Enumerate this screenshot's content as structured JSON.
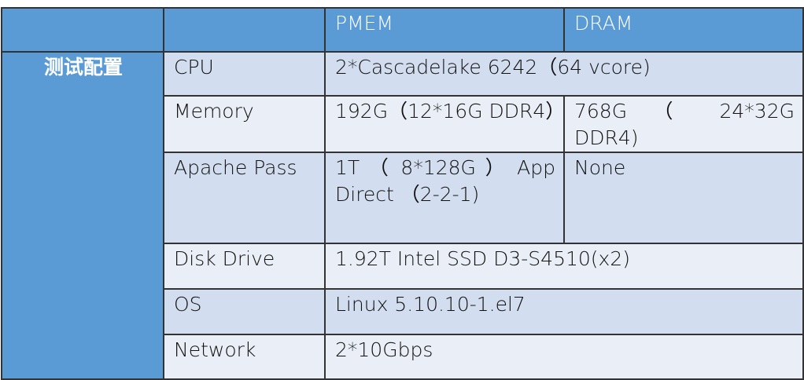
{
  "header": {
    "col1": "",
    "col2": "",
    "pmem": "PMEM",
    "dram": "DRAM"
  },
  "group_label": "测试配置",
  "rows": [
    {
      "label": "CPU",
      "value": "2*Cascadelake 6242（64 vcore)"
    },
    {
      "label": "Memory",
      "pmem": "192G（12*16G DDR4）",
      "dram": "768G （ 24*32G DDR4)"
    },
    {
      "label": "Apache Pass",
      "pmem": "1T （ 8*128G ） App Direct （2-2-1)",
      "dram": "None"
    },
    {
      "label": "Disk Drive",
      "value": "1.92T Intel SSD D3-S4510(x2)"
    },
    {
      "label": "OS",
      "value": "Linux 5.10.10-1.el7"
    },
    {
      "label": "Network",
      "value": "2*10Gbps"
    }
  ],
  "colors": {
    "header": "#5b9bd5",
    "row_dark": "#d2deef",
    "row_light": "#eaeff7"
  }
}
